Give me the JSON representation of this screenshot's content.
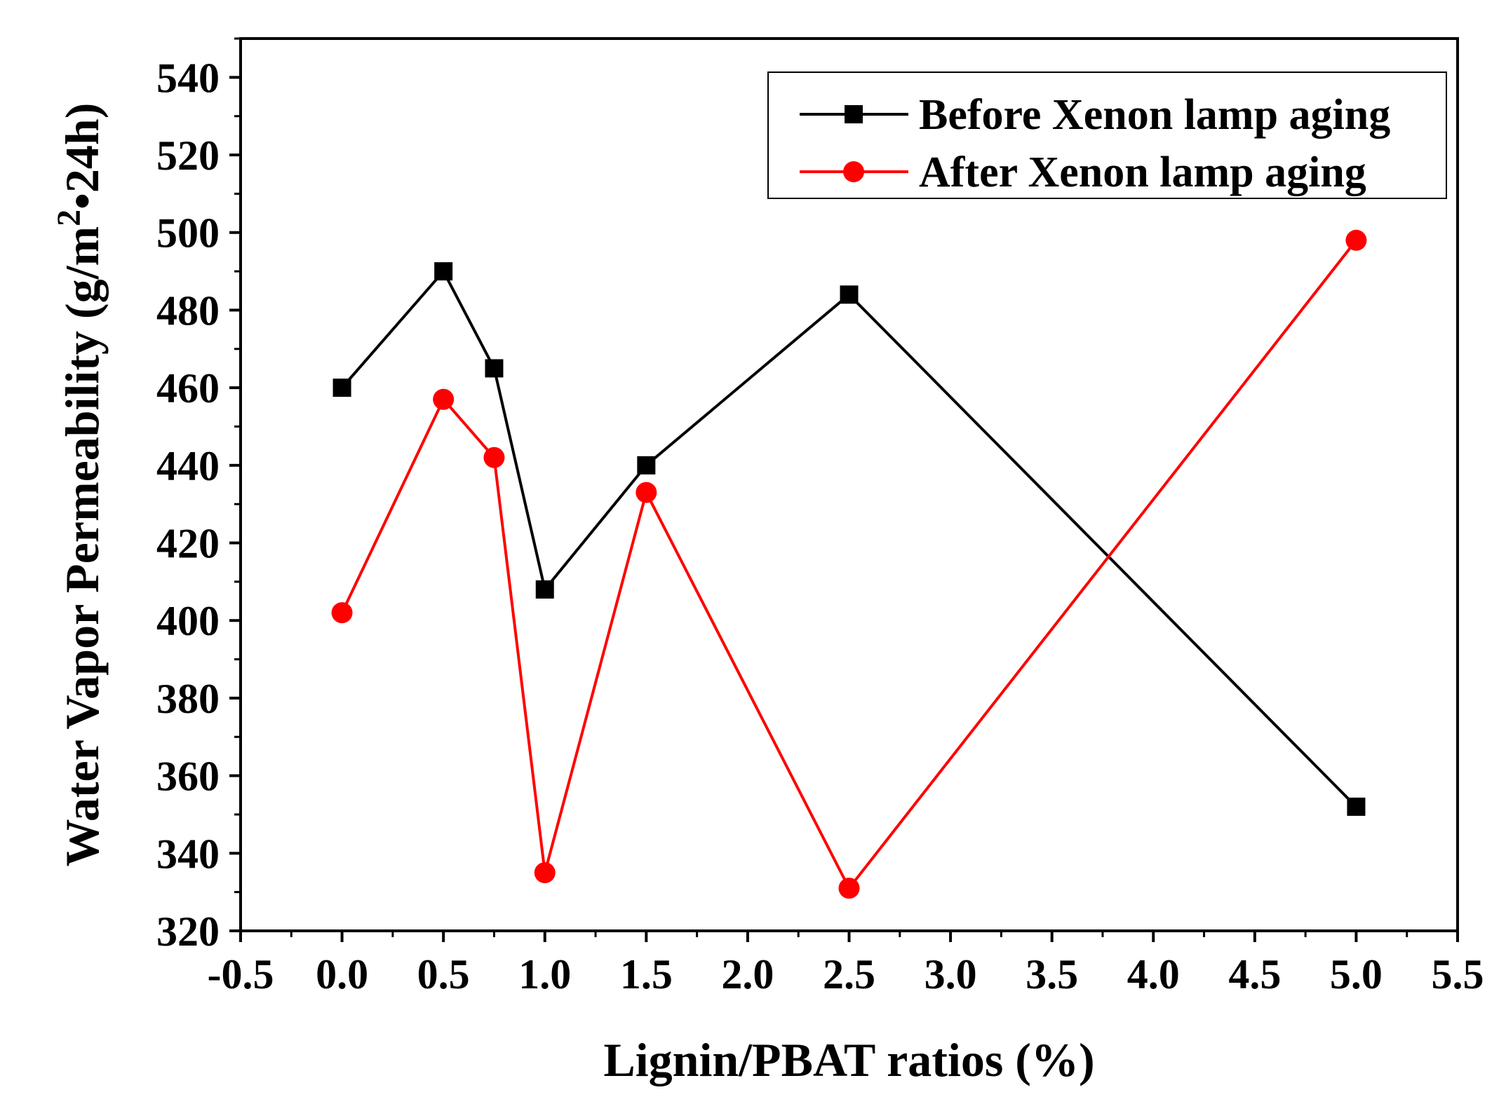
{
  "chart_data": {
    "type": "line",
    "title": "",
    "xlabel": "Lignin/PBAT ratios (%)",
    "ylabel_main": "Water Vapor Permeability (g/m",
    "ylabel_sup": "2",
    "ylabel_tail": "•24h)",
    "xlim": [
      -0.5,
      5.5
    ],
    "ylim": [
      320,
      550
    ],
    "xticks": [
      "-0.5",
      "0.0",
      "0.5",
      "1.0",
      "1.5",
      "2.0",
      "2.5",
      "3.0",
      "3.5",
      "4.0",
      "4.5",
      "5.0",
      "5.5"
    ],
    "xtick_values": [
      -0.5,
      0.0,
      0.5,
      1.0,
      1.5,
      2.0,
      2.5,
      3.0,
      3.5,
      4.0,
      4.5,
      5.0,
      5.5
    ],
    "yticks": [
      "320",
      "340",
      "360",
      "380",
      "400",
      "420",
      "440",
      "460",
      "480",
      "500",
      "520",
      "540"
    ],
    "ytick_values": [
      320,
      340,
      360,
      380,
      400,
      420,
      440,
      460,
      480,
      500,
      520,
      540
    ],
    "legend_position": "top-right",
    "x": [
      0.0,
      0.5,
      0.75,
      1.0,
      1.5,
      2.5,
      5.0
    ],
    "series": [
      {
        "name": "Before Xenon lamp aging",
        "color": "#000000",
        "marker": "square",
        "values": [
          460,
          490,
          465,
          408,
          440,
          484,
          352
        ]
      },
      {
        "name": "After Xenon lamp aging",
        "color": "#ff0000",
        "marker": "circle",
        "values": [
          402,
          457,
          442,
          335,
          433,
          331,
          498
        ]
      }
    ]
  }
}
